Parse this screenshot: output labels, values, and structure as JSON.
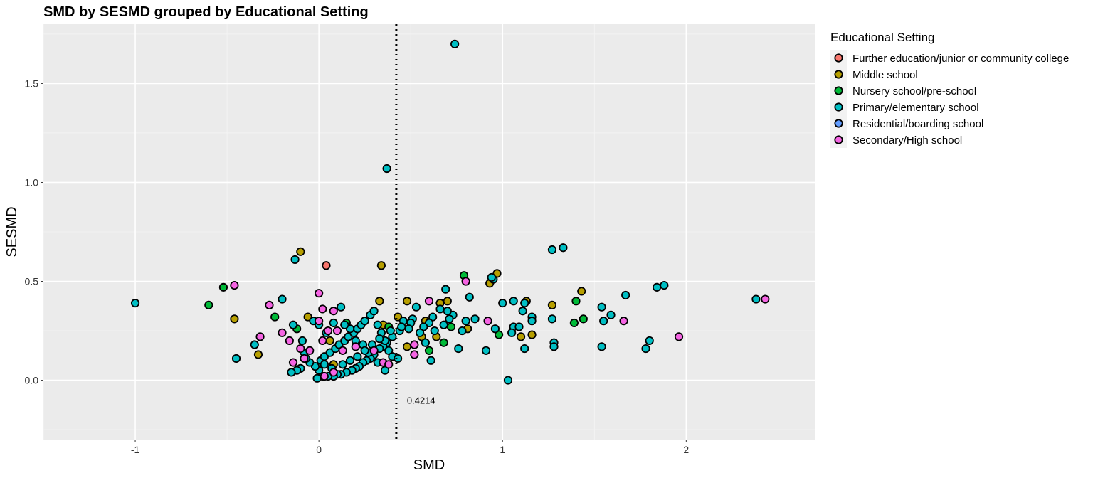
{
  "chart_data": {
    "type": "scatter",
    "title": "SMD by SESMD grouped by Educational Setting",
    "xlabel": "SMD",
    "ylabel": "SESMD",
    "xlim": [
      -1.5,
      2.7
    ],
    "ylim": [
      -0.3,
      1.8
    ],
    "x_ticks": [
      -1,
      0,
      1,
      2
    ],
    "x_tick_labels": [
      "-1",
      "0",
      "1",
      "2"
    ],
    "y_ticks": [
      0.0,
      0.5,
      1.0,
      1.5
    ],
    "y_tick_labels": [
      "0.0",
      "0.5",
      "1.0",
      "1.5"
    ],
    "grid": true,
    "legend": {
      "title": "Educational Setting",
      "placement": "right"
    },
    "vline": {
      "x": 0.4214,
      "label": "0.4214",
      "style": "dotted"
    },
    "series": [
      {
        "name": "Further education/junior or community college",
        "color": "#F8766D",
        "points": [
          [
            0.04,
            0.58
          ]
        ]
      },
      {
        "name": "Middle school",
        "color": "#B79F00",
        "points": [
          [
            -0.1,
            0.65
          ],
          [
            0.34,
            0.58
          ],
          [
            -0.46,
            0.31
          ],
          [
            -0.33,
            0.13
          ],
          [
            0.97,
            0.54
          ],
          [
            0.93,
            0.49
          ],
          [
            1.43,
            0.45
          ],
          [
            1.27,
            0.38
          ],
          [
            1.13,
            0.4
          ],
          [
            1.16,
            0.23
          ],
          [
            1.1,
            0.22
          ],
          [
            0.48,
            0.4
          ],
          [
            0.66,
            0.39
          ],
          [
            0.7,
            0.4
          ],
          [
            0.43,
            0.32
          ],
          [
            0.81,
            0.26
          ],
          [
            0.56,
            0.22
          ],
          [
            0.33,
            0.4
          ],
          [
            0.06,
            0.2
          ],
          [
            0.08,
            0.08
          ],
          [
            0.48,
            0.17
          ],
          [
            -0.06,
            0.32
          ],
          [
            0.64,
            0.22
          ],
          [
            0.35,
            0.28
          ],
          [
            0.58,
            0.3
          ]
        ]
      },
      {
        "name": "Nursery school/pre-school",
        "color": "#00BA38",
        "points": [
          [
            -0.52,
            0.47
          ],
          [
            -0.6,
            0.38
          ],
          [
            0.79,
            0.53
          ],
          [
            1.4,
            0.4
          ],
          [
            1.44,
            0.31
          ],
          [
            1.39,
            0.29
          ],
          [
            0.98,
            0.23
          ],
          [
            0.68,
            0.19
          ],
          [
            0.6,
            0.15
          ],
          [
            -0.12,
            0.26
          ],
          [
            -0.24,
            0.32
          ],
          [
            0.15,
            0.29
          ],
          [
            0.38,
            0.27
          ],
          [
            0.72,
            0.27
          ]
        ]
      },
      {
        "name": "Primary/elementary school",
        "color": "#00BFC4",
        "points": [
          [
            0.74,
            1.7
          ],
          [
            0.37,
            1.07
          ],
          [
            1.27,
            0.66
          ],
          [
            1.33,
            0.67
          ],
          [
            -0.13,
            0.61
          ],
          [
            -1.0,
            0.39
          ],
          [
            -0.45,
            0.11
          ],
          [
            -0.35,
            0.18
          ],
          [
            -0.2,
            0.41
          ],
          [
            2.38,
            0.41
          ],
          [
            1.84,
            0.47
          ],
          [
            1.88,
            0.48
          ],
          [
            1.67,
            0.43
          ],
          [
            1.59,
            0.33
          ],
          [
            1.54,
            0.37
          ],
          [
            1.55,
            0.3
          ],
          [
            1.54,
            0.17
          ],
          [
            1.78,
            0.16
          ],
          [
            1.8,
            0.2
          ],
          [
            1.27,
            0.31
          ],
          [
            1.28,
            0.19
          ],
          [
            1.28,
            0.17
          ],
          [
            1.16,
            0.32
          ],
          [
            1.16,
            0.3
          ],
          [
            1.12,
            0.39
          ],
          [
            1.11,
            0.35
          ],
          [
            1.06,
            0.4
          ],
          [
            1.06,
            0.27
          ],
          [
            1.09,
            0.27
          ],
          [
            1.05,
            0.24
          ],
          [
            1.12,
            0.16
          ],
          [
            1.03,
            0.0
          ],
          [
            0.91,
            0.15
          ],
          [
            0.96,
            0.26
          ],
          [
            0.95,
            0.51
          ],
          [
            0.94,
            0.52
          ],
          [
            1.0,
            0.39
          ],
          [
            0.82,
            0.42
          ],
          [
            0.8,
            0.3
          ],
          [
            0.85,
            0.31
          ],
          [
            0.78,
            0.25
          ],
          [
            0.76,
            0.16
          ],
          [
            0.73,
            0.33
          ],
          [
            0.7,
            0.35
          ],
          [
            0.69,
            0.46
          ],
          [
            0.66,
            0.36
          ],
          [
            0.62,
            0.32
          ],
          [
            0.6,
            0.29
          ],
          [
            0.57,
            0.27
          ],
          [
            0.61,
            0.1
          ],
          [
            0.53,
            0.37
          ],
          [
            0.51,
            0.31
          ],
          [
            0.5,
            0.29
          ],
          [
            0.49,
            0.26
          ],
          [
            0.46,
            0.3
          ],
          [
            0.44,
            0.25
          ],
          [
            0.4,
            0.22
          ],
          [
            0.37,
            0.19
          ],
          [
            0.35,
            0.17
          ],
          [
            0.33,
            0.16
          ],
          [
            0.3,
            0.13
          ],
          [
            0.28,
            0.11
          ],
          [
            0.26,
            0.1
          ],
          [
            0.24,
            0.09
          ],
          [
            0.22,
            0.07
          ],
          [
            0.2,
            0.06
          ],
          [
            0.18,
            0.05
          ],
          [
            0.15,
            0.04
          ],
          [
            0.12,
            0.03
          ],
          [
            0.1,
            0.03
          ],
          [
            0.08,
            0.02
          ],
          [
            0.05,
            0.02
          ],
          [
            0.02,
            0.02
          ],
          [
            -0.01,
            0.01
          ],
          [
            0.0,
            0.05
          ],
          [
            -0.02,
            0.07
          ],
          [
            -0.05,
            0.09
          ],
          [
            -0.07,
            0.11
          ],
          [
            -0.1,
            0.06
          ],
          [
            -0.12,
            0.05
          ],
          [
            -0.15,
            0.04
          ],
          [
            0.01,
            0.1
          ],
          [
            0.03,
            0.12
          ],
          [
            0.06,
            0.14
          ],
          [
            0.09,
            0.16
          ],
          [
            0.11,
            0.18
          ],
          [
            0.14,
            0.2
          ],
          [
            0.16,
            0.22
          ],
          [
            0.19,
            0.24
          ],
          [
            0.21,
            0.26
          ],
          [
            0.23,
            0.28
          ],
          [
            0.25,
            0.3
          ],
          [
            0.28,
            0.33
          ],
          [
            0.3,
            0.35
          ],
          [
            0.32,
            0.28
          ],
          [
            0.34,
            0.24
          ],
          [
            0.36,
            0.2
          ],
          [
            0.38,
            0.15
          ],
          [
            0.4,
            0.12
          ],
          [
            0.43,
            0.11
          ],
          [
            0.36,
            0.05
          ],
          [
            0.32,
            0.09
          ],
          [
            0.27,
            0.14
          ],
          [
            0.24,
            0.18
          ],
          [
            0.2,
            0.2
          ],
          [
            0.17,
            0.26
          ],
          [
            0.14,
            0.28
          ],
          [
            0.12,
            0.37
          ],
          [
            0.08,
            0.29
          ],
          [
            0.04,
            0.24
          ],
          [
            0.0,
            0.28
          ],
          [
            -0.03,
            0.3
          ],
          [
            -0.09,
            0.2
          ],
          [
            -0.14,
            0.28
          ],
          [
            -0.08,
            0.14
          ],
          [
            0.03,
            0.08
          ],
          [
            0.07,
            0.06
          ],
          [
            0.13,
            0.08
          ],
          [
            0.17,
            0.1
          ],
          [
            0.21,
            0.12
          ],
          [
            0.25,
            0.15
          ],
          [
            0.29,
            0.18
          ],
          [
            0.33,
            0.21
          ],
          [
            0.39,
            0.25
          ],
          [
            0.45,
            0.27
          ],
          [
            0.55,
            0.24
          ],
          [
            0.58,
            0.19
          ],
          [
            0.63,
            0.25
          ],
          [
            0.68,
            0.28
          ],
          [
            0.71,
            0.31
          ]
        ]
      },
      {
        "name": "Residential/boarding school",
        "color": "#619CFF",
        "points": []
      },
      {
        "name": "Secondary/High school",
        "color": "#F564E3",
        "points": [
          [
            -0.46,
            0.48
          ],
          [
            0.0,
            0.44
          ],
          [
            2.43,
            0.41
          ],
          [
            1.96,
            0.22
          ],
          [
            1.66,
            0.3
          ],
          [
            0.8,
            0.5
          ],
          [
            0.6,
            0.4
          ],
          [
            0.92,
            0.3
          ],
          [
            -0.27,
            0.38
          ],
          [
            -0.32,
            0.22
          ],
          [
            -0.2,
            0.24
          ],
          [
            -0.16,
            0.2
          ],
          [
            -0.1,
            0.16
          ],
          [
            -0.08,
            0.11
          ],
          [
            -0.14,
            0.09
          ],
          [
            -0.05,
            0.15
          ],
          [
            0.02,
            0.2
          ],
          [
            0.05,
            0.25
          ],
          [
            0.08,
            0.35
          ],
          [
            0.02,
            0.36
          ],
          [
            0.0,
            0.3
          ],
          [
            0.1,
            0.25
          ],
          [
            0.13,
            0.15
          ],
          [
            0.2,
            0.17
          ],
          [
            0.3,
            0.15
          ],
          [
            0.35,
            0.09
          ],
          [
            0.38,
            0.08
          ],
          [
            0.52,
            0.13
          ],
          [
            0.52,
            0.18
          ],
          [
            0.03,
            0.02
          ],
          [
            0.08,
            0.04
          ]
        ]
      }
    ]
  }
}
